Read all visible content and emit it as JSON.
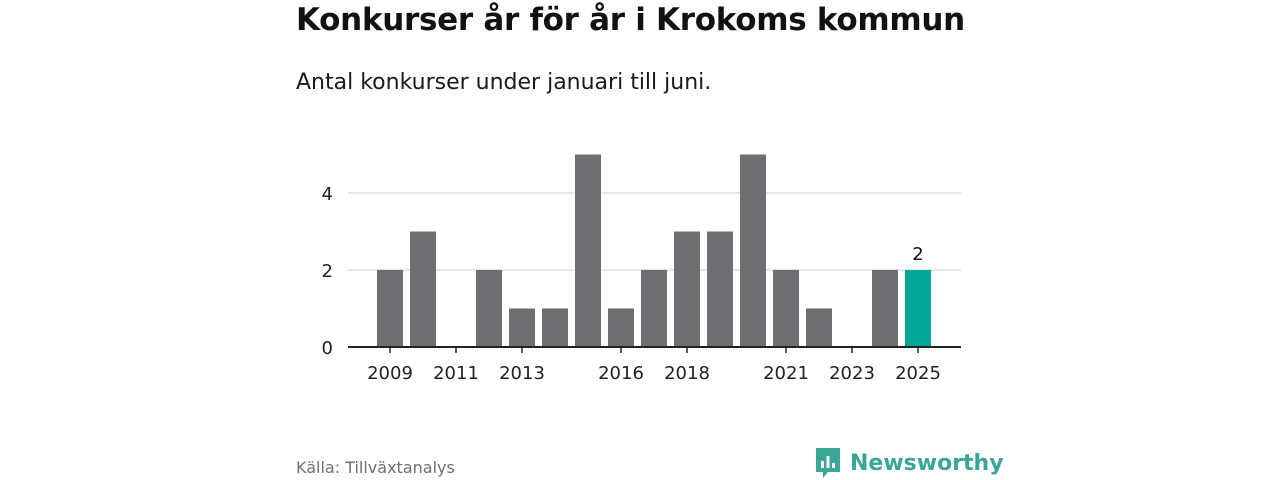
{
  "header": {
    "title": "Konkurser år för år i Krokoms kommun",
    "subtitle": "Antal konkurser under januari till juni."
  },
  "footer": {
    "source": "Källa: Tillväxtanalys",
    "brand": "Newsworthy",
    "brand_icon": "newsworthy-logo-icon"
  },
  "colors": {
    "bar": "#6e6d72",
    "highlight": "#00a698",
    "gridline": "#dddddd",
    "axis": "#222222",
    "brand": "#3aa695"
  },
  "chart_data": {
    "type": "bar",
    "categories": [
      "2009",
      "2010",
      "2011",
      "2012",
      "2013",
      "2014",
      "2015",
      "2016",
      "2017",
      "2018",
      "2019",
      "2020",
      "2021",
      "2022",
      "2023",
      "2024",
      "2025"
    ],
    "values": [
      2,
      3,
      0,
      2,
      1,
      1,
      5,
      1,
      2,
      3,
      3,
      5,
      2,
      1,
      0,
      2,
      2
    ],
    "tick_labels": [
      "2009",
      "2011",
      "2013",
      "2016",
      "2018",
      "2021",
      "2023",
      "2025"
    ],
    "y_ticks": [
      0,
      2,
      4
    ],
    "ylim": [
      0,
      5
    ],
    "highlight_category": "2025",
    "data_labels": [
      {
        "category": "2025",
        "text": "2"
      }
    ],
    "grid": true,
    "legend": false,
    "xlabel": "",
    "ylabel": ""
  }
}
